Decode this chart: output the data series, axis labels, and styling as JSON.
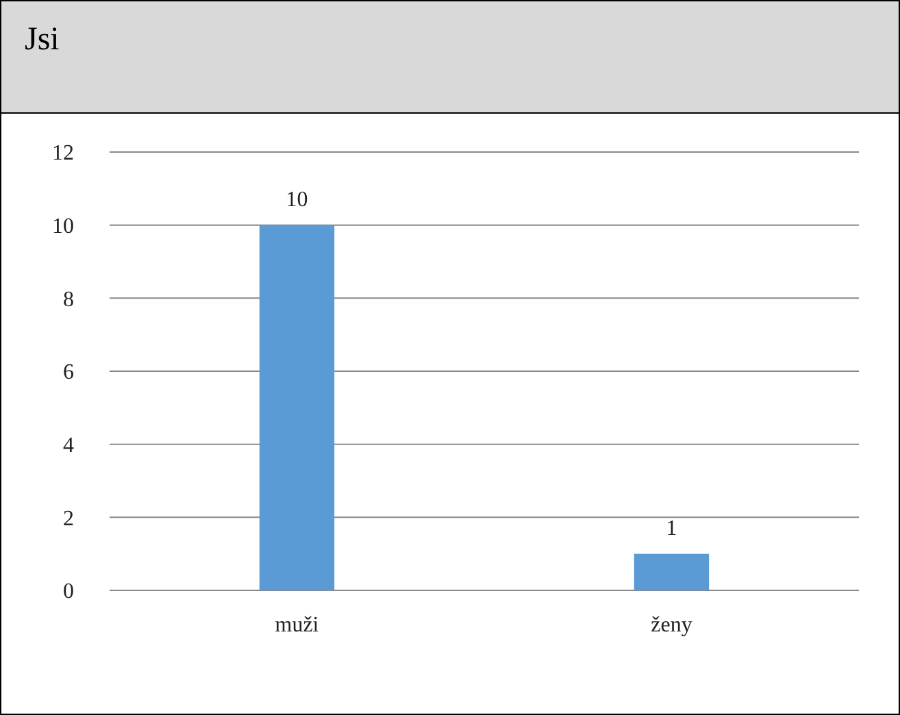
{
  "chart_data": {
    "type": "bar",
    "title": "Jsi",
    "categories": [
      "muži",
      "ženy"
    ],
    "values": [
      10,
      1
    ],
    "color": "#5b9bd5",
    "ylim": [
      0,
      12
    ],
    "yticks": [
      0,
      2,
      4,
      6,
      8,
      10,
      12
    ],
    "grid": "y",
    "data_labels": true
  }
}
